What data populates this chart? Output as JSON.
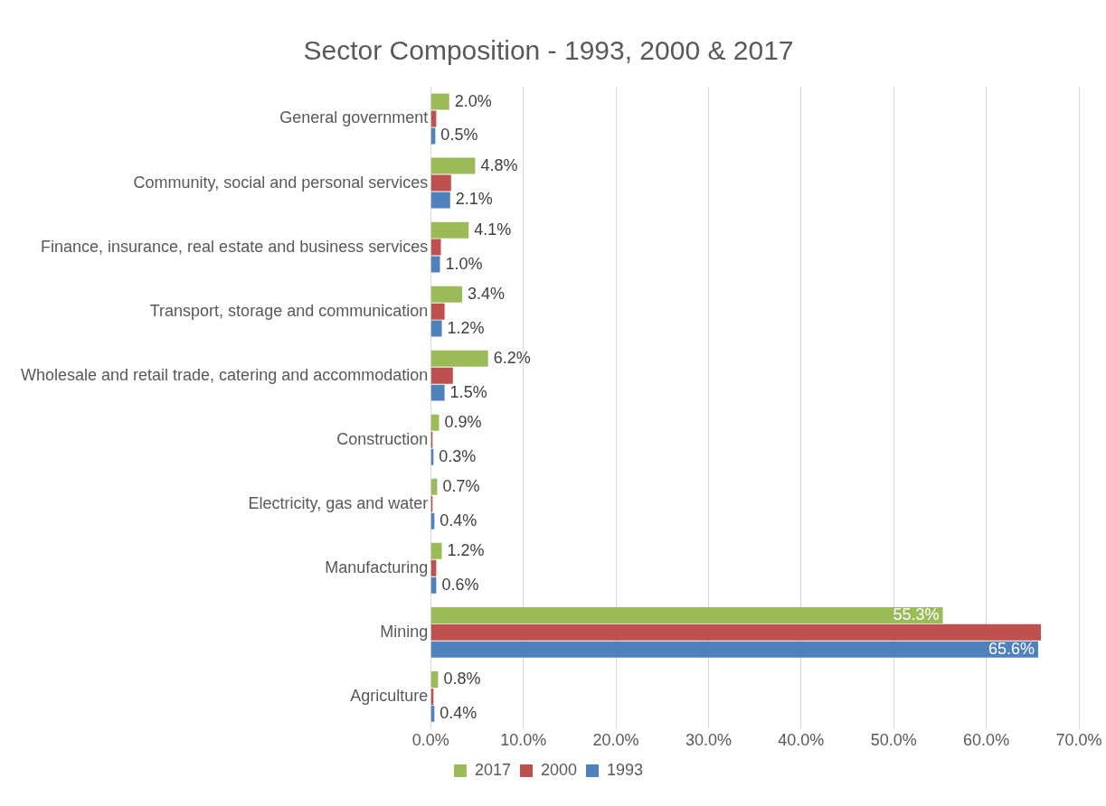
{
  "chart_data": {
    "type": "bar",
    "orientation": "horizontal",
    "title": "Sector Composition - 1993, 2000 & 2017",
    "categories": [
      "General government",
      "Community, social and personal services",
      "Finance, insurance, real estate and business services",
      "Transport, storage and communication",
      "Wholesale and retail trade, catering and accommodation",
      "Construction",
      "Electricity, gas and water",
      "Manufacturing",
      "Mining",
      "Agriculture"
    ],
    "series": [
      {
        "name": "2017",
        "color": "#9bbb59",
        "values": [
          2.0,
          4.8,
          4.1,
          3.4,
          6.2,
          0.9,
          0.7,
          1.2,
          55.3,
          0.8
        ],
        "value_labels": [
          "2.0%",
          "4.8%",
          "4.1%",
          "3.4%",
          "6.2%",
          "0.9%",
          "0.7%",
          "1.2%",
          "55.3%",
          "0.8%"
        ]
      },
      {
        "name": "2000",
        "color": "#c0504d",
        "values": [
          0.6,
          2.2,
          1.1,
          1.5,
          2.4,
          0.2,
          0.2,
          0.6,
          65.9,
          0.3
        ]
      },
      {
        "name": "1993",
        "color": "#4f81bd",
        "values": [
          0.5,
          2.1,
          1.0,
          1.2,
          1.5,
          0.3,
          0.4,
          0.6,
          65.6,
          0.4
        ],
        "value_labels": [
          "0.5%",
          "2.1%",
          "1.0%",
          "1.2%",
          "1.5%",
          "0.3%",
          "0.4%",
          "0.6%",
          "65.6%",
          "0.4%"
        ]
      }
    ],
    "xlim": [
      0,
      70
    ],
    "xticks": [
      {
        "value": 0,
        "label": "0.0%"
      },
      {
        "value": 10,
        "label": "10.0%"
      },
      {
        "value": 20,
        "label": "20.0%"
      },
      {
        "value": 30,
        "label": "30.0%"
      },
      {
        "value": 40,
        "label": "40.0%"
      },
      {
        "value": 50,
        "label": "50.0%"
      },
      {
        "value": 60,
        "label": "60.0%"
      },
      {
        "value": 70,
        "label": "70.0%"
      }
    ],
    "grid": "x",
    "legend": "bottom"
  }
}
